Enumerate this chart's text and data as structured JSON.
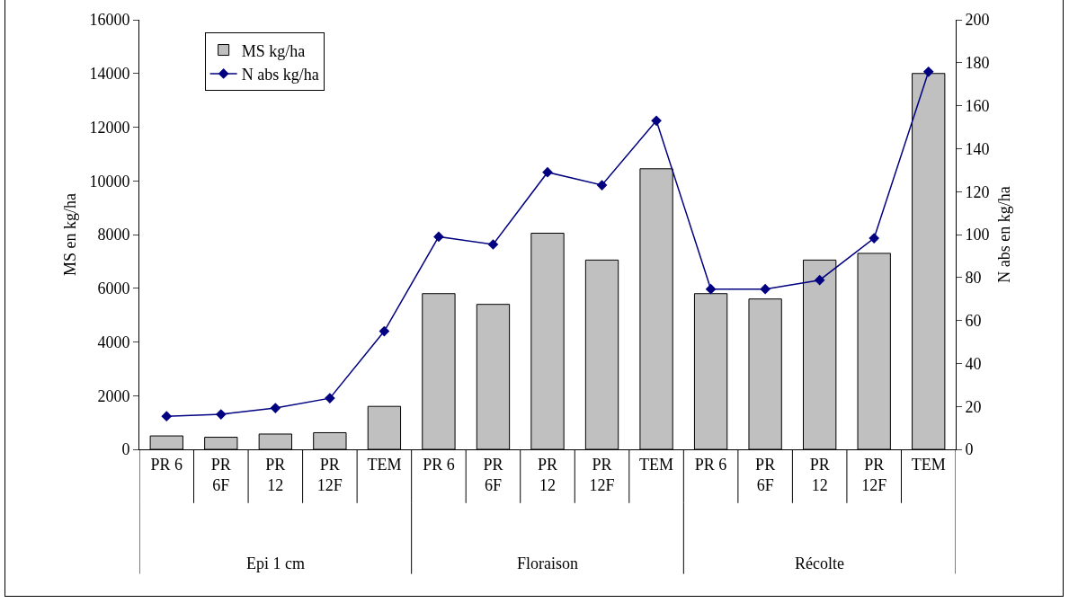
{
  "chart_data": {
    "type": "bar",
    "categories": [
      "PR 6",
      "PR 6F",
      "PR 12",
      "PR 12F",
      "TEM",
      "PR 6",
      "PR 6F",
      "PR 12",
      "PR 12F",
      "TEM",
      "PR 6",
      "PR 6F",
      "PR 12",
      "PR 12F",
      "TEM"
    ],
    "series": [
      {
        "name": "MS kg/ha",
        "color": "#c0c0c0",
        "values": [
          500,
          450,
          570,
          620,
          1600,
          5800,
          5400,
          8050,
          7050,
          10450,
          5800,
          5600,
          7050,
          7300,
          14000
        ]
      },
      {
        "name": "N abs kg/ha",
        "type": "line",
        "axis": "y2",
        "color": "#000080",
        "marker": "diamond",
        "values": [
          15.4,
          16.3,
          19.2,
          23.8,
          55,
          99,
          95.4,
          129,
          123,
          153,
          74.6,
          74.6,
          78.8,
          98.3,
          175.8
        ]
      }
    ],
    "annotations": [
      "Epi 1 cm",
      "Floraison",
      "Récolte"
    ],
    "ylabel": "MS en kg/ha",
    "y2label": "N abs en kg/ha",
    "ylim": [
      0,
      16000
    ],
    "yticks": [
      0,
      2000,
      4000,
      6000,
      8000,
      10000,
      12000,
      14000,
      16000
    ],
    "y2lim": [
      0,
      200
    ],
    "y2ticks": [
      0,
      20,
      40,
      60,
      80,
      100,
      120,
      140,
      160,
      180,
      200
    ],
    "grid": false,
    "legend": "top left"
  }
}
